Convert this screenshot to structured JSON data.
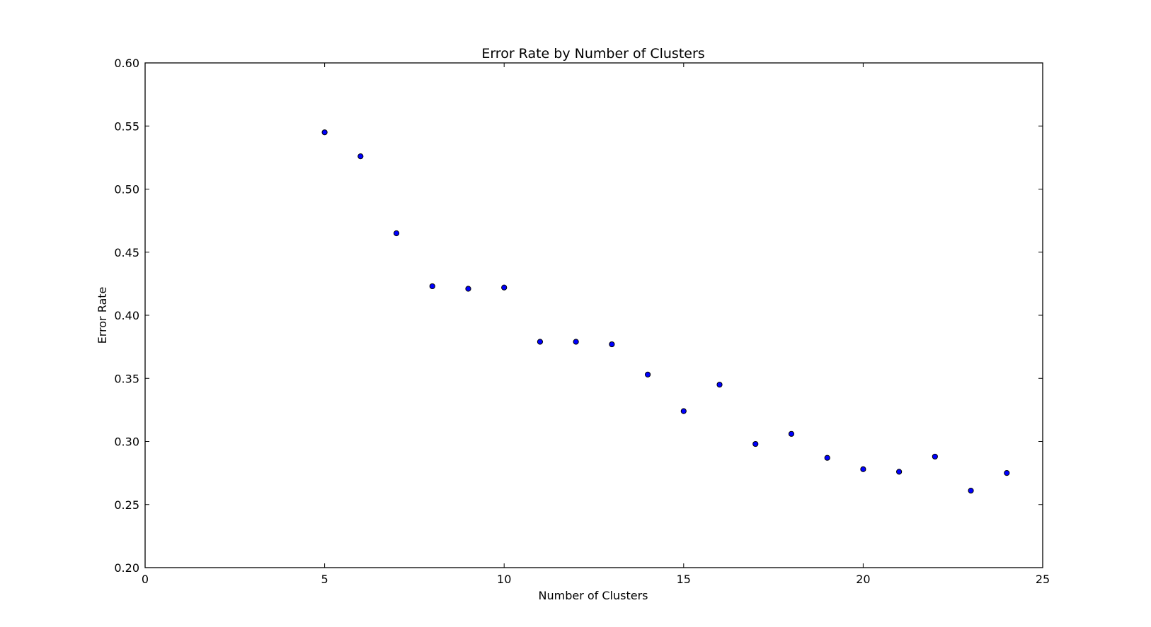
{
  "chart_data": {
    "type": "scatter",
    "title": "Error Rate by Number of Clusters",
    "xlabel": "Number of Clusters",
    "ylabel": "Error Rate",
    "xlim": [
      0,
      25
    ],
    "ylim": [
      0.2,
      0.6
    ],
    "xticks": [
      0,
      5,
      10,
      15,
      20,
      25
    ],
    "xtick_labels": [
      "0",
      "5",
      "10",
      "15",
      "20",
      "25"
    ],
    "yticks": [
      0.2,
      0.25,
      0.3,
      0.35,
      0.4,
      0.45,
      0.5,
      0.55,
      0.6
    ],
    "ytick_labels": [
      "0.20",
      "0.25",
      "0.30",
      "0.35",
      "0.40",
      "0.45",
      "0.50",
      "0.55",
      "0.60"
    ],
    "grid": false,
    "legend": "none",
    "marker_fill": "#0000ff",
    "marker_edge": "#000000",
    "x": [
      5,
      6,
      7,
      8,
      9,
      10,
      11,
      12,
      13,
      14,
      15,
      16,
      17,
      18,
      19,
      20,
      21,
      22,
      23,
      24
    ],
    "y": [
      0.545,
      0.526,
      0.465,
      0.423,
      0.421,
      0.422,
      0.379,
      0.379,
      0.377,
      0.353,
      0.324,
      0.345,
      0.298,
      0.306,
      0.287,
      0.278,
      0.276,
      0.288,
      0.261,
      0.275
    ]
  }
}
